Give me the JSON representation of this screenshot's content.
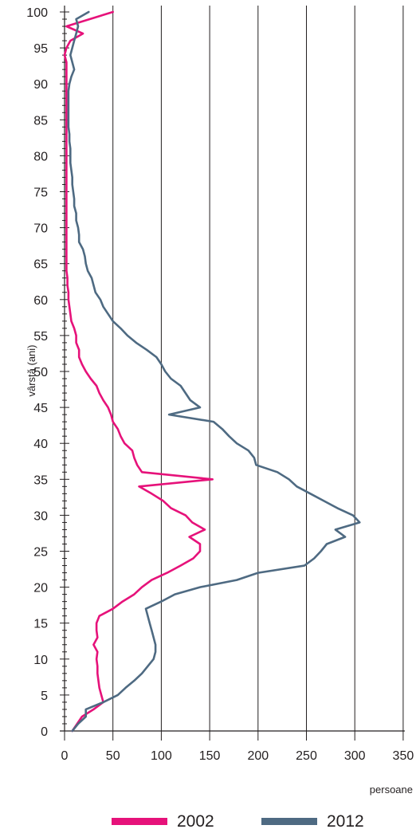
{
  "chart_data": {
    "type": "line",
    "orientation": "horizontal",
    "title": "",
    "xlabel": "persoane",
    "ylabel": "vârstă (ani)",
    "xlim": [
      0,
      350
    ],
    "ylim": [
      0,
      100
    ],
    "x_ticks": [
      "0",
      "50",
      "100",
      "150",
      "200",
      "250",
      "300",
      "350"
    ],
    "y_ticks": [
      "0",
      "5",
      "10",
      "15",
      "20",
      "25",
      "30",
      "35",
      "40",
      "45",
      "50",
      "55",
      "60",
      "65",
      "70",
      "75",
      "80",
      "85",
      "90",
      "95",
      "100"
    ],
    "grid": "vertical",
    "legend_position": "bottom",
    "series": [
      {
        "name": "2002",
        "color": "#e6127a",
        "points": [
          [
            8,
            0
          ],
          [
            18,
            2
          ],
          [
            30,
            3
          ],
          [
            40,
            4
          ],
          [
            38,
            5
          ],
          [
            36,
            6
          ],
          [
            35,
            7
          ],
          [
            34,
            8
          ],
          [
            34,
            9
          ],
          [
            33,
            10
          ],
          [
            34,
            11
          ],
          [
            30,
            12
          ],
          [
            34,
            13
          ],
          [
            33,
            14
          ],
          [
            33,
            15
          ],
          [
            36,
            16
          ],
          [
            50,
            17
          ],
          [
            60,
            18
          ],
          [
            72,
            19
          ],
          [
            80,
            20
          ],
          [
            90,
            21
          ],
          [
            106,
            22
          ],
          [
            120,
            23
          ],
          [
            133,
            24
          ],
          [
            140,
            25
          ],
          [
            140,
            26
          ],
          [
            129,
            27
          ],
          [
            145,
            28
          ],
          [
            132,
            29
          ],
          [
            125,
            30
          ],
          [
            110,
            31
          ],
          [
            102,
            32
          ],
          [
            90,
            33
          ],
          [
            77,
            34
          ],
          [
            153,
            35
          ],
          [
            80,
            36
          ],
          [
            75,
            37
          ],
          [
            72,
            38
          ],
          [
            70,
            39
          ],
          [
            62,
            40
          ],
          [
            58,
            41
          ],
          [
            55,
            42
          ],
          [
            50,
            43
          ],
          [
            48,
            44
          ],
          [
            45,
            45
          ],
          [
            40,
            46
          ],
          [
            36,
            47
          ],
          [
            33,
            48
          ],
          [
            27,
            49
          ],
          [
            22,
            50
          ],
          [
            18,
            51
          ],
          [
            15,
            52
          ],
          [
            15,
            53
          ],
          [
            12,
            54
          ],
          [
            12,
            55
          ],
          [
            10,
            56
          ],
          [
            7,
            57
          ],
          [
            6,
            58
          ],
          [
            5,
            59
          ],
          [
            4,
            60
          ],
          [
            4,
            61
          ],
          [
            3,
            62
          ],
          [
            3,
            63
          ],
          [
            2,
            64
          ],
          [
            2,
            65
          ],
          [
            2,
            66
          ],
          [
            2,
            67
          ],
          [
            2,
            68
          ],
          [
            2,
            69
          ],
          [
            2,
            70
          ],
          [
            2,
            71
          ],
          [
            2,
            72
          ],
          [
            2,
            73
          ],
          [
            2,
            74
          ],
          [
            2,
            75
          ],
          [
            2,
            76
          ],
          [
            2,
            77
          ],
          [
            2,
            78
          ],
          [
            2,
            79
          ],
          [
            2,
            80
          ],
          [
            2,
            81
          ],
          [
            2,
            82
          ],
          [
            2,
            83
          ],
          [
            2,
            84
          ],
          [
            2,
            85
          ],
          [
            2,
            86
          ],
          [
            2,
            87
          ],
          [
            2,
            88
          ],
          [
            2,
            89
          ],
          [
            2,
            90
          ],
          [
            2,
            91
          ],
          [
            2,
            92
          ],
          [
            2,
            93
          ],
          [
            0,
            94
          ],
          [
            2,
            95
          ],
          [
            6,
            96
          ],
          [
            19,
            97
          ],
          [
            2,
            98
          ],
          [
            50,
            100
          ]
        ]
      },
      {
        "name": "2012",
        "color": "#4e6a82",
        "points": [
          [
            8,
            0
          ],
          [
            14,
            1
          ],
          [
            22,
            2
          ],
          [
            22,
            3
          ],
          [
            40,
            4
          ],
          [
            55,
            5
          ],
          [
            63,
            6
          ],
          [
            72,
            7
          ],
          [
            80,
            8
          ],
          [
            86,
            9
          ],
          [
            92,
            10
          ],
          [
            94,
            11
          ],
          [
            94,
            12
          ],
          [
            92,
            13
          ],
          [
            90,
            14
          ],
          [
            88,
            15
          ],
          [
            86,
            16
          ],
          [
            84,
            17
          ],
          [
            100,
            18
          ],
          [
            114,
            19
          ],
          [
            140,
            20
          ],
          [
            178,
            21
          ],
          [
            200,
            22
          ],
          [
            248,
            23
          ],
          [
            258,
            24
          ],
          [
            265,
            25
          ],
          [
            271,
            26
          ],
          [
            290,
            27
          ],
          [
            280,
            28
          ],
          [
            305,
            29
          ],
          [
            298,
            30
          ],
          [
            282,
            31
          ],
          [
            268,
            32
          ],
          [
            254,
            33
          ],
          [
            240,
            34
          ],
          [
            232,
            35
          ],
          [
            220,
            36
          ],
          [
            198,
            37
          ],
          [
            196,
            38
          ],
          [
            190,
            39
          ],
          [
            178,
            40
          ],
          [
            170,
            41
          ],
          [
            163,
            42
          ],
          [
            154,
            43
          ],
          [
            108,
            44
          ],
          [
            140,
            45
          ],
          [
            130,
            46
          ],
          [
            125,
            47
          ],
          [
            120,
            48
          ],
          [
            110,
            49
          ],
          [
            104,
            50
          ],
          [
            100,
            51
          ],
          [
            95,
            52
          ],
          [
            85,
            53
          ],
          [
            74,
            54
          ],
          [
            65,
            55
          ],
          [
            58,
            56
          ],
          [
            50,
            57
          ],
          [
            45,
            58
          ],
          [
            40,
            59
          ],
          [
            37,
            60
          ],
          [
            32,
            61
          ],
          [
            30,
            62
          ],
          [
            28,
            63
          ],
          [
            24,
            64
          ],
          [
            22,
            65
          ],
          [
            21,
            66
          ],
          [
            19,
            67
          ],
          [
            15,
            68
          ],
          [
            15,
            69
          ],
          [
            14,
            70
          ],
          [
            12,
            71
          ],
          [
            12,
            72
          ],
          [
            10,
            73
          ],
          [
            10,
            74
          ],
          [
            9,
            75
          ],
          [
            8,
            76
          ],
          [
            8,
            77
          ],
          [
            7,
            78
          ],
          [
            6,
            79
          ],
          [
            6,
            80
          ],
          [
            6,
            81
          ],
          [
            5,
            82
          ],
          [
            5,
            83
          ],
          [
            4,
            84
          ],
          [
            4,
            85
          ],
          [
            4,
            86
          ],
          [
            4,
            87
          ],
          [
            4,
            88
          ],
          [
            4,
            89
          ],
          [
            5,
            90
          ],
          [
            7,
            91
          ],
          [
            10,
            92
          ],
          [
            8,
            93
          ],
          [
            6,
            94
          ],
          [
            8,
            95
          ],
          [
            10,
            96
          ],
          [
            12,
            97
          ],
          [
            14,
            98
          ],
          [
            12,
            99
          ],
          [
            25,
            100
          ]
        ]
      }
    ]
  }
}
